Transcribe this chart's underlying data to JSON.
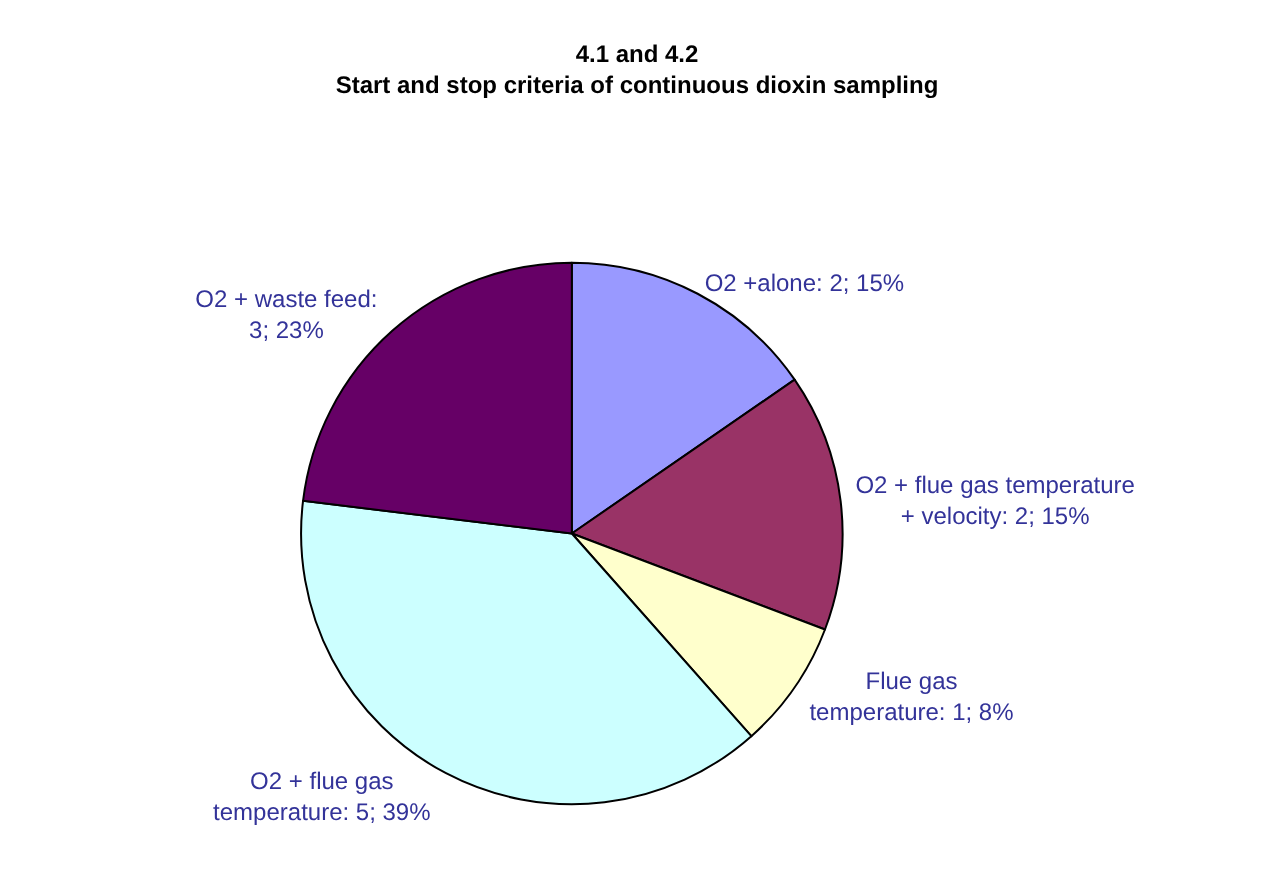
{
  "chart_data": {
    "type": "pie",
    "title": "4.1 and 4.2\nStart and stop criteria of continuous dioxin sampling",
    "categories": [
      "O2 +alone: 2; 15%",
      "O2 + flue gas temperature\n+ velocity: 2; 15%",
      "Flue gas\ntemperature: 1; 8%",
      "O2 + flue gas\ntemperature: 5; 39%",
      "O2 + waste feed:\n3; 23%"
    ],
    "values": [
      2,
      2,
      1,
      5,
      3
    ],
    "colors": [
      "#9999ff",
      "#993366",
      "#ffffcc",
      "#ccffff",
      "#660066"
    ]
  }
}
